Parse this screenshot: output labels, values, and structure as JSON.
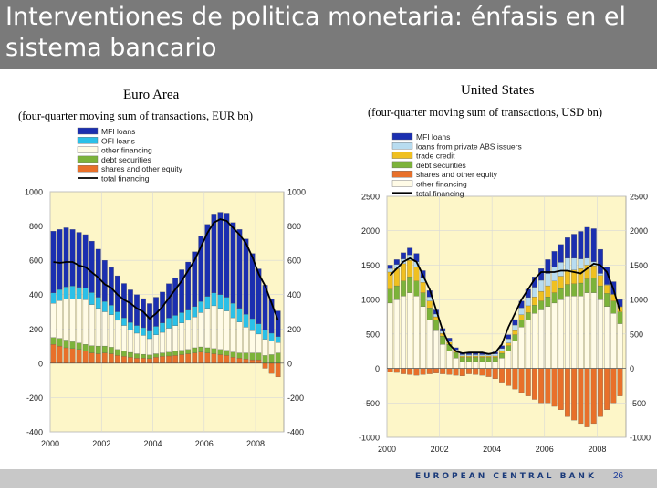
{
  "slide": {
    "title": "Interventiones de politica monetaria: énfasis en el sistema bancario",
    "footer": "EUROPEAN CENTRAL BANK",
    "page_number": "26",
    "colors": {
      "title_bg": "#7a7a7a",
      "footer_bg": "#c8c8c8",
      "plot_bg": "#fdf6c8"
    }
  },
  "chart_data": [
    {
      "type": "bar",
      "stacked": true,
      "title": "Euro Area",
      "subtitle": "(four-quarter moving sum of transactions, EUR bn)",
      "ylim": [
        -400,
        1000
      ],
      "yticks": [
        -400,
        -200,
        0,
        200,
        400,
        600,
        800,
        1000
      ],
      "ytick_labels": [
        "-400",
        "-200",
        "0",
        "200",
        "400",
        "600",
        "800",
        "1000"
      ],
      "xlim": [
        2000,
        2009.1
      ],
      "xticks": [
        2000,
        2002,
        2004,
        2006,
        2008
      ],
      "xtick_labels": [
        "2000",
        "2002",
        "2004",
        "2006",
        "2008"
      ],
      "legend": [
        {
          "name": "MFI loans",
          "color": "#1b2fb0",
          "kind": "box"
        },
        {
          "name": "OFI loans",
          "color": "#2bc0e8",
          "kind": "box"
        },
        {
          "name": "other financing",
          "color": "#fffbe6",
          "kind": "box"
        },
        {
          "name": "debt securities",
          "color": "#7cb33a",
          "kind": "box"
        },
        {
          "name": "shares and other equity",
          "color": "#e8702a",
          "kind": "box"
        },
        {
          "name": "total financing",
          "color": "#000000",
          "kind": "line"
        }
      ],
      "x": [
        2000.0,
        2000.25,
        2000.5,
        2000.75,
        2001.0,
        2001.25,
        2001.5,
        2001.75,
        2002.0,
        2002.25,
        2002.5,
        2002.75,
        2003.0,
        2003.25,
        2003.5,
        2003.75,
        2004.0,
        2004.25,
        2004.5,
        2004.75,
        2005.0,
        2005.25,
        2005.5,
        2005.75,
        2006.0,
        2006.25,
        2006.5,
        2006.75,
        2007.0,
        2007.25,
        2007.5,
        2007.75,
        2008.0,
        2008.25,
        2008.5,
        2008.75
      ],
      "series": [
        {
          "name": "shares and other equity",
          "values": [
            110,
            100,
            90,
            85,
            80,
            70,
            60,
            55,
            60,
            55,
            45,
            40,
            35,
            30,
            30,
            28,
            35,
            40,
            42,
            45,
            50,
            55,
            60,
            65,
            60,
            55,
            50,
            45,
            35,
            30,
            25,
            20,
            20,
            -30,
            -60,
            -80
          ]
        },
        {
          "name": "debt securities",
          "values": [
            40,
            45,
            45,
            40,
            38,
            40,
            42,
            45,
            40,
            38,
            35,
            30,
            28,
            25,
            22,
            20,
            20,
            20,
            22,
            24,
            25,
            25,
            30,
            30,
            30,
            30,
            30,
            30,
            30,
            30,
            35,
            40,
            40,
            45,
            50,
            60
          ]
        },
        {
          "name": "other financing",
          "values": [
            200,
            220,
            240,
            250,
            255,
            260,
            240,
            220,
            200,
            190,
            170,
            150,
            130,
            120,
            110,
            95,
            110,
            120,
            140,
            150,
            160,
            170,
            180,
            200,
            230,
            250,
            240,
            230,
            200,
            180,
            150,
            130,
            110,
            95,
            80,
            60
          ]
        },
        {
          "name": "OFI loans",
          "values": [
            60,
            65,
            70,
            75,
            70,
            70,
            70,
            65,
            60,
            55,
            50,
            45,
            45,
            45,
            45,
            45,
            50,
            55,
            60,
            60,
            60,
            60,
            60,
            65,
            70,
            75,
            80,
            80,
            85,
            80,
            75,
            70,
            60,
            55,
            45,
            35
          ]
        },
        {
          "name": "MFI loans",
          "values": [
            360,
            350,
            345,
            330,
            320,
            310,
            300,
            280,
            240,
            220,
            210,
            200,
            190,
            180,
            170,
            160,
            170,
            180,
            200,
            220,
            250,
            280,
            320,
            380,
            420,
            460,
            480,
            490,
            470,
            460,
            440,
            380,
            320,
            260,
            200,
            150
          ]
        }
      ],
      "total_financing": [
        590,
        585,
        590,
        590,
        570,
        560,
        530,
        500,
        460,
        440,
        400,
        370,
        350,
        320,
        300,
        260,
        290,
        330,
        380,
        430,
        480,
        540,
        600,
        680,
        760,
        820,
        840,
        830,
        790,
        750,
        700,
        620,
        520,
        450,
        350,
        250
      ]
    },
    {
      "type": "bar",
      "stacked": true,
      "title": "United States",
      "subtitle": "(four-quarter moving sum of transactions, USD bn)",
      "ylim": [
        -1000,
        2500
      ],
      "yticks": [
        -1000,
        -500,
        0,
        500,
        1000,
        1500,
        2000,
        2500
      ],
      "ytick_labels": [
        "-1000",
        "-500",
        "0",
        "500",
        "1000",
        "1500",
        "2000",
        "2500"
      ],
      "xlim": [
        2000,
        2009.1
      ],
      "xticks": [
        2000,
        2002,
        2004,
        2006,
        2008
      ],
      "xtick_labels": [
        "2000",
        "2002",
        "2004",
        "2006",
        "2008"
      ],
      "legend": [
        {
          "name": "MFI loans",
          "color": "#1b2fb0",
          "kind": "box"
        },
        {
          "name": "loans from private ABS issuers",
          "color": "#b8dcf0",
          "kind": "box"
        },
        {
          "name": "trade credit",
          "color": "#f0c020",
          "kind": "box"
        },
        {
          "name": "debt securities",
          "color": "#7cb33a",
          "kind": "box"
        },
        {
          "name": "shares and other equity",
          "color": "#e8702a",
          "kind": "box"
        },
        {
          "name": "other financing",
          "color": "#fffbe6",
          "kind": "box"
        },
        {
          "name": "total financing",
          "color": "#000000",
          "kind": "line"
        }
      ],
      "x": [
        2000.0,
        2000.25,
        2000.5,
        2000.75,
        2001.0,
        2001.25,
        2001.5,
        2001.75,
        2002.0,
        2002.25,
        2002.5,
        2002.75,
        2003.0,
        2003.25,
        2003.5,
        2003.75,
        2004.0,
        2004.25,
        2004.5,
        2004.75,
        2005.0,
        2005.25,
        2005.5,
        2005.75,
        2006.0,
        2006.25,
        2006.5,
        2006.75,
        2007.0,
        2007.25,
        2007.5,
        2007.75,
        2008.0,
        2008.25,
        2008.5,
        2008.75
      ],
      "series": [
        {
          "name": "shares and other equity",
          "values": [
            -50,
            -60,
            -80,
            -90,
            -100,
            -90,
            -80,
            -70,
            -80,
            -90,
            -100,
            -110,
            -80,
            -90,
            -100,
            -120,
            -150,
            -200,
            -250,
            -300,
            -350,
            -400,
            -450,
            -500,
            -500,
            -550,
            -600,
            -700,
            -750,
            -800,
            -850,
            -800,
            -700,
            -600,
            -500,
            -400
          ]
        },
        {
          "name": "other financing",
          "values": [
            950,
            1000,
            1050,
            1100,
            1050,
            900,
            700,
            550,
            350,
            250,
            150,
            100,
            100,
            100,
            100,
            100,
            100,
            150,
            250,
            400,
            600,
            700,
            800,
            850,
            900,
            950,
            1000,
            1050,
            1050,
            1050,
            1100,
            1100,
            1000,
            900,
            800,
            650
          ]
        },
        {
          "name": "debt securities",
          "values": [
            200,
            200,
            220,
            230,
            220,
            200,
            180,
            150,
            120,
            100,
            80,
            60,
            60,
            60,
            60,
            60,
            60,
            70,
            80,
            90,
            100,
            110,
            120,
            130,
            140,
            150,
            160,
            170,
            180,
            190,
            200,
            210,
            200,
            190,
            180,
            170
          ]
        },
        {
          "name": "trade credit",
          "values": [
            250,
            250,
            250,
            240,
            200,
            150,
            100,
            50,
            40,
            30,
            20,
            20,
            20,
            20,
            20,
            20,
            20,
            30,
            40,
            60,
            80,
            100,
            120,
            140,
            160,
            170,
            180,
            190,
            200,
            210,
            200,
            180,
            150,
            120,
            100,
            80
          ]
        },
        {
          "name": "loans from private ABS issuers",
          "values": [
            50,
            60,
            70,
            80,
            80,
            70,
            60,
            40,
            30,
            20,
            20,
            20,
            20,
            20,
            20,
            20,
            30,
            40,
            60,
            80,
            100,
            120,
            140,
            160,
            180,
            200,
            200,
            190,
            170,
            140,
            100,
            60,
            30,
            10,
            0,
            0
          ]
        },
        {
          "name": "MFI loans",
          "values": [
            50,
            70,
            90,
            100,
            120,
            100,
            90,
            60,
            40,
            40,
            30,
            20,
            20,
            20,
            20,
            20,
            30,
            40,
            60,
            80,
            100,
            120,
            150,
            170,
            200,
            230,
            260,
            300,
            350,
            400,
            450,
            480,
            350,
            250,
            180,
            100
          ]
        }
      ],
      "total_financing": [
        1350,
        1450,
        1550,
        1600,
        1550,
        1350,
        1150,
        850,
        550,
        350,
        250,
        220,
        230,
        230,
        230,
        210,
        230,
        350,
        600,
        800,
        1000,
        1150,
        1300,
        1400,
        1400,
        1400,
        1420,
        1420,
        1400,
        1380,
        1450,
        1520,
        1500,
        1400,
        1150,
        830
      ]
    }
  ]
}
